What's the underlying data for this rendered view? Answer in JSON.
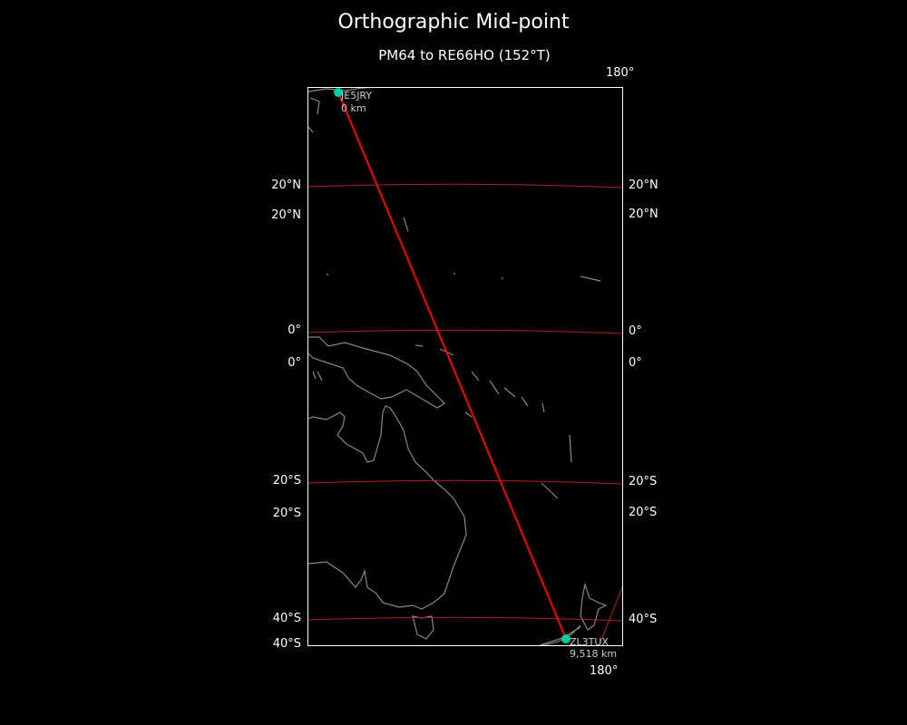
{
  "title": "Orthographic Mid-point",
  "subtitle": "PM64 to RE66HO (152°T)",
  "colors": {
    "background": "#000000",
    "path": "#ff0000",
    "gridlines": "#b22222",
    "coastline": "#888888",
    "marker": "#00d0a0"
  },
  "gridlines": {
    "left": [
      "20°N",
      "20°N",
      "0°",
      "0°",
      "20°S",
      "20°S",
      "40°S",
      "40°S"
    ],
    "right": [
      "20°N",
      "20°N",
      "0°",
      "0°",
      "20°S",
      "20°S",
      "40°S"
    ],
    "top": "180°",
    "bottom": "180°"
  },
  "start": {
    "callsign": "JE5JRY",
    "distance": "0 km"
  },
  "end": {
    "callsign": "ZL3TUX",
    "distance": "9,518 km"
  }
}
